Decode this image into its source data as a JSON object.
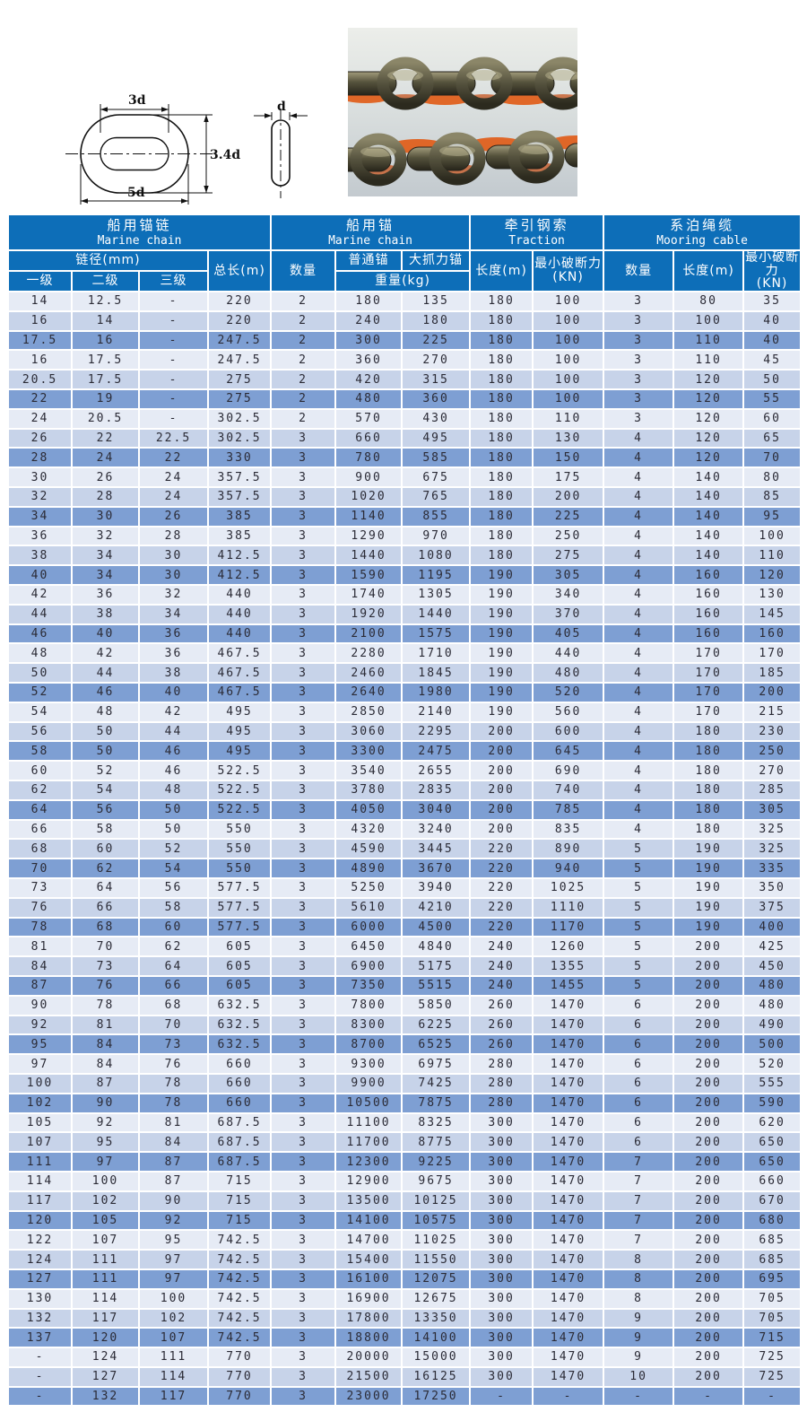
{
  "diagram": {
    "dim_inner_width": "3d",
    "dim_height": "3.4d",
    "dim_outer_width": "5d",
    "dim_bar_diameter": "d"
  },
  "table": {
    "colors": {
      "header_bg": "#0d6eb8",
      "header_text": "#ffffff",
      "grid": "#ffffff",
      "row_light": "#e6ebf5",
      "row_mid": "#c7d3e9",
      "row_dark": "#7e9fd3",
      "cell_text": "#2b2b36",
      "photo_orange": "#e05a14"
    },
    "groups": [
      {
        "zh": "船用锚链",
        "en": "Marine chain"
      },
      {
        "zh": "船用锚",
        "en": "Marine chain"
      },
      {
        "zh": "牵引钢索",
        "en": "Traction"
      },
      {
        "zh": "系泊绳缆",
        "en": "Mooring cable"
      }
    ],
    "headers": {
      "chain_diameter": "链径(mm)",
      "grade1": "一级",
      "grade2": "二级",
      "grade3": "三级",
      "total_length": "总长(m)",
      "anchor_qty": "数量",
      "ordinary_anchor": "普通锚",
      "high_holding_anchor": "大抓力锚",
      "anchor_weight": "重量(kg)",
      "tow_length": "长度(m)",
      "tow_min_break": "最小破断力\n(KN)",
      "mooring_qty": "数量",
      "mooring_length": "长度(m)",
      "mooring_min_break": "最小破断力\n(KN)"
    },
    "rows": [
      [
        "14",
        "12.5",
        "-",
        "220",
        "2",
        "180",
        "135",
        "180",
        "100",
        "3",
        "80",
        "35"
      ],
      [
        "16",
        "14",
        "-",
        "220",
        "2",
        "240",
        "180",
        "180",
        "100",
        "3",
        "100",
        "40"
      ],
      [
        "17.5",
        "16",
        "-",
        "247.5",
        "2",
        "300",
        "225",
        "180",
        "100",
        "3",
        "110",
        "40"
      ],
      [
        "16",
        "17.5",
        "-",
        "247.5",
        "2",
        "360",
        "270",
        "180",
        "100",
        "3",
        "110",
        "45"
      ],
      [
        "20.5",
        "17.5",
        "-",
        "275",
        "2",
        "420",
        "315",
        "180",
        "100",
        "3",
        "120",
        "50"
      ],
      [
        "22",
        "19",
        "-",
        "275",
        "2",
        "480",
        "360",
        "180",
        "100",
        "3",
        "120",
        "55"
      ],
      [
        "24",
        "20.5",
        "-",
        "302.5",
        "2",
        "570",
        "430",
        "180",
        "110",
        "3",
        "120",
        "60"
      ],
      [
        "26",
        "22",
        "22.5",
        "302.5",
        "3",
        "660",
        "495",
        "180",
        "130",
        "4",
        "120",
        "65"
      ],
      [
        "28",
        "24",
        "22",
        "330",
        "3",
        "780",
        "585",
        "180",
        "150",
        "4",
        "120",
        "70"
      ],
      [
        "30",
        "26",
        "24",
        "357.5",
        "3",
        "900",
        "675",
        "180",
        "175",
        "4",
        "140",
        "80"
      ],
      [
        "32",
        "28",
        "24",
        "357.5",
        "3",
        "1020",
        "765",
        "180",
        "200",
        "4",
        "140",
        "85"
      ],
      [
        "34",
        "30",
        "26",
        "385",
        "3",
        "1140",
        "855",
        "180",
        "225",
        "4",
        "140",
        "95"
      ],
      [
        "36",
        "32",
        "28",
        "385",
        "3",
        "1290",
        "970",
        "180",
        "250",
        "4",
        "140",
        "100"
      ],
      [
        "38",
        "34",
        "30",
        "412.5",
        "3",
        "1440",
        "1080",
        "180",
        "275",
        "4",
        "140",
        "110"
      ],
      [
        "40",
        "34",
        "30",
        "412.5",
        "3",
        "1590",
        "1195",
        "190",
        "305",
        "4",
        "160",
        "120"
      ],
      [
        "42",
        "36",
        "32",
        "440",
        "3",
        "1740",
        "1305",
        "190",
        "340",
        "4",
        "160",
        "130"
      ],
      [
        "44",
        "38",
        "34",
        "440",
        "3",
        "1920",
        "1440",
        "190",
        "370",
        "4",
        "160",
        "145"
      ],
      [
        "46",
        "40",
        "36",
        "440",
        "3",
        "2100",
        "1575",
        "190",
        "405",
        "4",
        "160",
        "160"
      ],
      [
        "48",
        "42",
        "36",
        "467.5",
        "3",
        "2280",
        "1710",
        "190",
        "440",
        "4",
        "170",
        "170"
      ],
      [
        "50",
        "44",
        "38",
        "467.5",
        "3",
        "2460",
        "1845",
        "190",
        "480",
        "4",
        "170",
        "185"
      ],
      [
        "52",
        "46",
        "40",
        "467.5",
        "3",
        "2640",
        "1980",
        "190",
        "520",
        "4",
        "170",
        "200"
      ],
      [
        "54",
        "48",
        "42",
        "495",
        "3",
        "2850",
        "2140",
        "190",
        "560",
        "4",
        "170",
        "215"
      ],
      [
        "56",
        "50",
        "44",
        "495",
        "3",
        "3060",
        "2295",
        "200",
        "600",
        "4",
        "180",
        "230"
      ],
      [
        "58",
        "50",
        "46",
        "495",
        "3",
        "3300",
        "2475",
        "200",
        "645",
        "4",
        "180",
        "250"
      ],
      [
        "60",
        "52",
        "46",
        "522.5",
        "3",
        "3540",
        "2655",
        "200",
        "690",
        "4",
        "180",
        "270"
      ],
      [
        "62",
        "54",
        "48",
        "522.5",
        "3",
        "3780",
        "2835",
        "200",
        "740",
        "4",
        "180",
        "285"
      ],
      [
        "64",
        "56",
        "50",
        "522.5",
        "3",
        "4050",
        "3040",
        "200",
        "785",
        "4",
        "180",
        "305"
      ],
      [
        "66",
        "58",
        "50",
        "550",
        "3",
        "4320",
        "3240",
        "200",
        "835",
        "4",
        "180",
        "325"
      ],
      [
        "68",
        "60",
        "52",
        "550",
        "3",
        "4590",
        "3445",
        "220",
        "890",
        "5",
        "190",
        "325"
      ],
      [
        "70",
        "62",
        "54",
        "550",
        "3",
        "4890",
        "3670",
        "220",
        "940",
        "5",
        "190",
        "335"
      ],
      [
        "73",
        "64",
        "56",
        "577.5",
        "3",
        "5250",
        "3940",
        "220",
        "1025",
        "5",
        "190",
        "350"
      ],
      [
        "76",
        "66",
        "58",
        "577.5",
        "3",
        "5610",
        "4210",
        "220",
        "1110",
        "5",
        "190",
        "375"
      ],
      [
        "78",
        "68",
        "60",
        "577.5",
        "3",
        "6000",
        "4500",
        "220",
        "1170",
        "5",
        "190",
        "400"
      ],
      [
        "81",
        "70",
        "62",
        "605",
        "3",
        "6450",
        "4840",
        "240",
        "1260",
        "5",
        "200",
        "425"
      ],
      [
        "84",
        "73",
        "64",
        "605",
        "3",
        "6900",
        "5175",
        "240",
        "1355",
        "5",
        "200",
        "450"
      ],
      [
        "87",
        "76",
        "66",
        "605",
        "3",
        "7350",
        "5515",
        "240",
        "1455",
        "5",
        "200",
        "480"
      ],
      [
        "90",
        "78",
        "68",
        "632.5",
        "3",
        "7800",
        "5850",
        "260",
        "1470",
        "6",
        "200",
        "480"
      ],
      [
        "92",
        "81",
        "70",
        "632.5",
        "3",
        "8300",
        "6225",
        "260",
        "1470",
        "6",
        "200",
        "490"
      ],
      [
        "95",
        "84",
        "73",
        "632.5",
        "3",
        "8700",
        "6525",
        "260",
        "1470",
        "6",
        "200",
        "500"
      ],
      [
        "97",
        "84",
        "76",
        "660",
        "3",
        "9300",
        "6975",
        "280",
        "1470",
        "6",
        "200",
        "520"
      ],
      [
        "100",
        "87",
        "78",
        "660",
        "3",
        "9900",
        "7425",
        "280",
        "1470",
        "6",
        "200",
        "555"
      ],
      [
        "102",
        "90",
        "78",
        "660",
        "3",
        "10500",
        "7875",
        "280",
        "1470",
        "6",
        "200",
        "590"
      ],
      [
        "105",
        "92",
        "81",
        "687.5",
        "3",
        "11100",
        "8325",
        "300",
        "1470",
        "6",
        "200",
        "620"
      ],
      [
        "107",
        "95",
        "84",
        "687.5",
        "3",
        "11700",
        "8775",
        "300",
        "1470",
        "6",
        "200",
        "650"
      ],
      [
        "111",
        "97",
        "87",
        "687.5",
        "3",
        "12300",
        "9225",
        "300",
        "1470",
        "7",
        "200",
        "650"
      ],
      [
        "114",
        "100",
        "87",
        "715",
        "3",
        "12900",
        "9675",
        "300",
        "1470",
        "7",
        "200",
        "660"
      ],
      [
        "117",
        "102",
        "90",
        "715",
        "3",
        "13500",
        "10125",
        "300",
        "1470",
        "7",
        "200",
        "670"
      ],
      [
        "120",
        "105",
        "92",
        "715",
        "3",
        "14100",
        "10575",
        "300",
        "1470",
        "7",
        "200",
        "680"
      ],
      [
        "122",
        "107",
        "95",
        "742.5",
        "3",
        "14700",
        "11025",
        "300",
        "1470",
        "7",
        "200",
        "685"
      ],
      [
        "124",
        "111",
        "97",
        "742.5",
        "3",
        "15400",
        "11550",
        "300",
        "1470",
        "8",
        "200",
        "685"
      ],
      [
        "127",
        "111",
        "97",
        "742.5",
        "3",
        "16100",
        "12075",
        "300",
        "1470",
        "8",
        "200",
        "695"
      ],
      [
        "130",
        "114",
        "100",
        "742.5",
        "3",
        "16900",
        "12675",
        "300",
        "1470",
        "8",
        "200",
        "705"
      ],
      [
        "132",
        "117",
        "102",
        "742.5",
        "3",
        "17800",
        "13350",
        "300",
        "1470",
        "9",
        "200",
        "705"
      ],
      [
        "137",
        "120",
        "107",
        "742.5",
        "3",
        "18800",
        "14100",
        "300",
        "1470",
        "9",
        "200",
        "715"
      ],
      [
        "-",
        "124",
        "111",
        "770",
        "3",
        "20000",
        "15000",
        "300",
        "1470",
        "9",
        "200",
        "725"
      ],
      [
        "-",
        "127",
        "114",
        "770",
        "3",
        "21500",
        "16125",
        "300",
        "1470",
        "10",
        "200",
        "725"
      ],
      [
        "-",
        "132",
        "117",
        "770",
        "3",
        "23000",
        "17250",
        "-",
        "-",
        "-",
        "-",
        "-"
      ]
    ]
  }
}
